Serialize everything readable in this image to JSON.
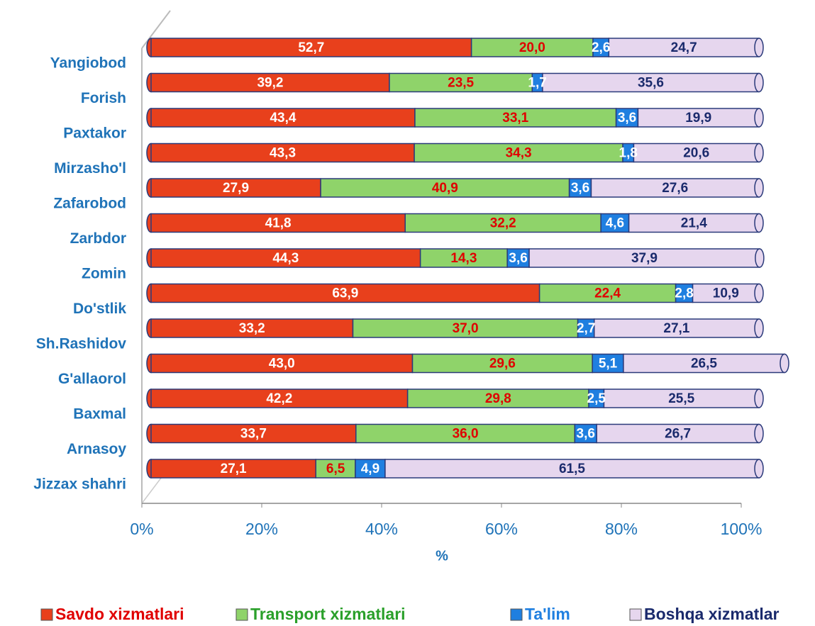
{
  "chart_data": {
    "type": "bar",
    "orientation": "horizontal",
    "stacked": true,
    "x_label": "%",
    "categories": [
      "Yangiobod",
      "Forish",
      "Paxtakor",
      "Mirzasho'l",
      "Zafarobod",
      "Zarbdor",
      "Zomin",
      "Do'stlik",
      "Sh.Rashidov",
      "G'allaorol",
      "Baxmal",
      "Arnasoy",
      "Jizzax shahri"
    ],
    "series": [
      {
        "name": "Savdo xizmatlari",
        "color": "#e8401c",
        "label_color": "#ffffff",
        "values": [
          52.7,
          39.2,
          43.4,
          43.3,
          27.9,
          41.8,
          44.3,
          63.9,
          33.2,
          43.0,
          42.2,
          33.7,
          27.1
        ],
        "value_labels": [
          "52,7",
          "39,2",
          "43,4",
          "43,3",
          "27,9",
          "41,8",
          "44,3",
          "63,9",
          "33,2",
          "43,0",
          "42,2",
          "33,7",
          "27,1"
        ]
      },
      {
        "name": "Transport xizmatlari",
        "color": "#8fd36a",
        "label_color": "#e00000",
        "values": [
          20.0,
          23.5,
          33.1,
          34.3,
          40.9,
          32.2,
          14.3,
          22.4,
          37.0,
          29.6,
          29.8,
          36.0,
          6.5
        ],
        "value_labels": [
          "20,0",
          "23,5",
          "33,1",
          "34,3",
          "40,9",
          "32,2",
          "14,3",
          "22,4",
          "37,0",
          "29,6",
          "29,8",
          "36,0",
          "6,5"
        ]
      },
      {
        "name": "Ta'lim",
        "color": "#1f7fe0",
        "label_color": "#ffffff",
        "values": [
          2.6,
          1.7,
          3.6,
          1.8,
          3.6,
          4.6,
          3.6,
          2.8,
          2.7,
          5.1,
          2.5,
          3.6,
          4.9
        ],
        "value_labels": [
          "2,6",
          "1,7",
          "3,6",
          "1,8",
          "3,6",
          "4,6",
          "3,6",
          "2,8",
          "2,7",
          "5,1",
          "2,5",
          "3,6",
          "4,9"
        ]
      },
      {
        "name": "Boshqa xizmatlar",
        "color": "#e6d6ee",
        "label_color": "#1a2a6c",
        "values": [
          24.7,
          35.6,
          19.9,
          20.6,
          27.6,
          21.4,
          37.9,
          10.9,
          27.1,
          26.5,
          25.5,
          26.7,
          61.5
        ],
        "value_labels": [
          "24,7",
          "35,6",
          "19,9",
          "20,6",
          "27,6",
          "21,4",
          "37,9",
          "10,9",
          "27,1",
          "26,5",
          "25,5",
          "26,7",
          "61,5"
        ]
      }
    ],
    "xlim": [
      0,
      100
    ],
    "xticks": [
      {
        "value": 0,
        "label": "0%"
      },
      {
        "value": 20,
        "label": "20%"
      },
      {
        "value": 40,
        "label": "40%"
      },
      {
        "value": 60,
        "label": "60%"
      },
      {
        "value": 80,
        "label": "80%"
      },
      {
        "value": 100,
        "label": "100%"
      }
    ],
    "legend": "bottom"
  }
}
